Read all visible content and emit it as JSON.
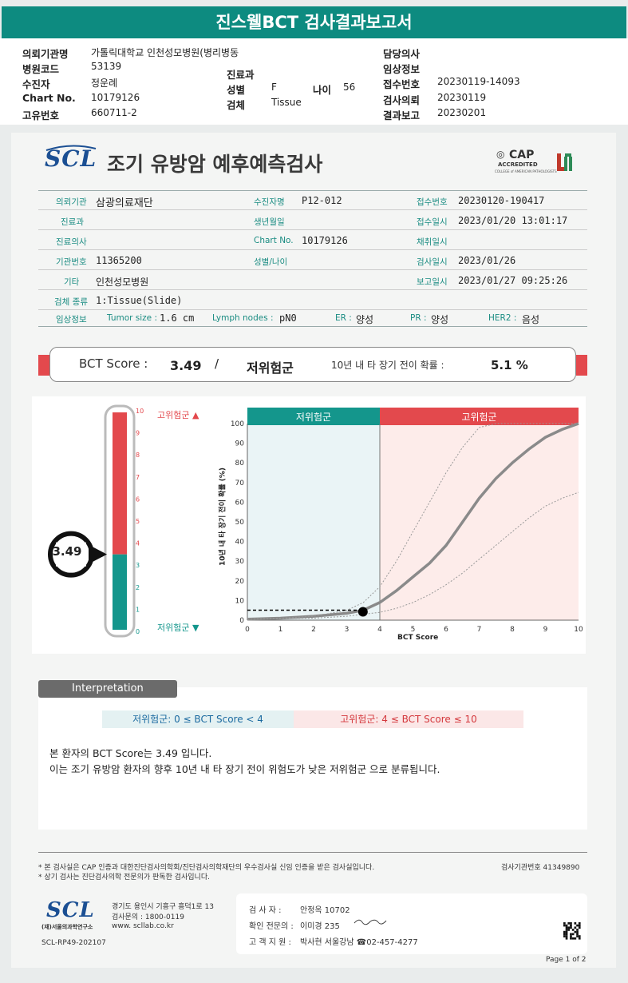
{
  "report_title": "진스웰BCT 검사결과보고서",
  "header": {
    "left": [
      {
        "label": "의뢰기관명",
        "value": "가톨릭대학교 인천성모병원(병리병동"
      },
      {
        "label": "병원코드",
        "value": "53139"
      },
      {
        "label": "수진자",
        "value": "정운례"
      },
      {
        "label": "Chart No.",
        "value": "10179126"
      },
      {
        "label": "고유번호",
        "value": "660711-2"
      }
    ],
    "mid": {
      "dept_label": "진료과",
      "sex_label": "성별",
      "sex_value": "F",
      "age_label": "나이",
      "age_value": "56",
      "specimen_label": "검체",
      "specimen_value": "Tissue"
    },
    "right": [
      {
        "label": "담당의사",
        "value": ""
      },
      {
        "label": "임상정보",
        "value": ""
      },
      {
        "label": "접수번호",
        "value": "20230119-14093"
      },
      {
        "label": "검사의뢰",
        "value": "20230119"
      },
      {
        "label": "결과보고",
        "value": "20230201"
      }
    ]
  },
  "brand": {
    "logo": "SCL",
    "title": "조기 유방암 예후예측검사",
    "cap_text": "CAP",
    "cap_sub": "ACCREDITED",
    "cap_small": "COLLEGE of AMERICAN PATHOLOGISTS"
  },
  "info": {
    "r1": {
      "l1": "의뢰기관",
      "v1": "삼광의료재단",
      "l2": "수진자명",
      "v2": "P12-012",
      "l3": "접수번호",
      "v3": "20230120-190417"
    },
    "r2": {
      "l1": "진료과",
      "v1": "",
      "l2": "생년월일",
      "v2": "",
      "l3": "접수일시",
      "v3": "2023/01/20 13:01:17"
    },
    "r3": {
      "l1": "진료의사",
      "v1": "",
      "l2": "Chart No.",
      "v2": "10179126",
      "l3": "채취일시",
      "v3": ""
    },
    "r4": {
      "l1": "기관번호",
      "v1": "11365200",
      "l2": "성별/나이",
      "v2": "",
      "l3": "검사일시",
      "v3": "2023/01/26"
    },
    "r5": {
      "l1": "기타",
      "v1": "인천성모병원",
      "l2": "",
      "v2": "",
      "l3": "보고일시",
      "v3": "2023/01/27 09:25:26"
    },
    "r6": {
      "l1": "검체 종류",
      "v1": "1:Tissue(Slide)"
    },
    "r7": {
      "l1": "임상정보",
      "tumor_label": "Tumor size :",
      "tumor_value": "1.6 cm",
      "lymph_label": "Lymph nodes :",
      "lymph_value": "pN0",
      "er_label": "ER :",
      "er_value": "양성",
      "pr_label": "PR :",
      "pr_value": "양성",
      "her2_label": "HER2 :",
      "her2_value": "음성"
    }
  },
  "score": {
    "label": "BCT Score :",
    "value": "3.49",
    "sep": "/",
    "group": "저위험군",
    "prob_label": "10년 내 타 장기 전이 확률 :",
    "prob_value": "5.1 %"
  },
  "gauge": {
    "value": 3.49,
    "value_text": "3.49",
    "ticks": [
      "0",
      "1",
      "2",
      "3",
      "4",
      "5",
      "6",
      "7",
      "8",
      "9",
      "10"
    ],
    "high_label": "고위험군 ▲",
    "low_label": "저위험군 ▼",
    "threshold": 4,
    "color_high": "#e3494d",
    "color_low": "#14968c"
  },
  "chart_data": {
    "type": "line",
    "title": "",
    "xlabel": "BCT Score",
    "ylabel": "10년 내 타 장기 전이 확률 (%)",
    "xlim": [
      0,
      10
    ],
    "ylim": [
      0,
      100
    ],
    "x_ticks": [
      "0",
      "1",
      "2",
      "3",
      "4",
      "5",
      "6",
      "7",
      "8",
      "9",
      "10"
    ],
    "y_ticks": [
      "0",
      "10",
      "20",
      "30",
      "40",
      "50",
      "60",
      "70",
      "80",
      "90",
      "100"
    ],
    "regions": [
      {
        "name": "저위험군",
        "from": 0,
        "to": 4,
        "color": "#14968c"
      },
      {
        "name": "고위험군",
        "from": 4,
        "to": 10,
        "color": "#e3494d"
      }
    ],
    "series": [
      {
        "style": "solid",
        "x": [
          0,
          1,
          2,
          3,
          3.5,
          4,
          4.5,
          5,
          5.5,
          6,
          6.5,
          7,
          7.5,
          8,
          8.5,
          9,
          9.5,
          10
        ],
        "y": [
          0.5,
          1,
          2,
          3.5,
          5.1,
          9,
          15,
          22,
          29,
          38,
          50,
          62,
          72,
          80,
          87,
          93,
          97,
          100
        ]
      },
      {
        "style": "dotted",
        "x": [
          0,
          1,
          2,
          3,
          3.5,
          4,
          4.5,
          5,
          5.5,
          6,
          6.5,
          7,
          7.5,
          8,
          8.5,
          9,
          9.5,
          10
        ],
        "y": [
          0.5,
          1,
          2,
          5,
          9,
          17,
          30,
          45,
          60,
          75,
          88,
          98,
          100,
          100,
          100,
          100,
          100,
          100
        ]
      },
      {
        "style": "dotted",
        "x": [
          0,
          1,
          2,
          3,
          3.5,
          4,
          4.5,
          5,
          5.5,
          6,
          6.5,
          7,
          7.5,
          8,
          8.5,
          9,
          9.5,
          10
        ],
        "y": [
          0.5,
          0.8,
          1,
          2,
          3,
          4,
          6,
          9,
          13,
          18,
          24,
          31,
          38,
          45,
          52,
          58,
          62,
          65
        ]
      }
    ],
    "marker": {
      "x": 3.49,
      "y": 5.1
    }
  },
  "interpretation": {
    "tab": "Interpretation",
    "low_range": "저위험군: 0 ≤ BCT Score < 4",
    "high_range": "고위험군: 4 ≤ BCT Score ≤ 10",
    "line1": "본 환자의 BCT Score는 3.49 입니다.",
    "line2": "이는 조기 유방암 환자의 향후 10년 내 타 장기 전이 위험도가 낮은 저위험군 으로 분류됩니다."
  },
  "footer": {
    "note1": "* 본 검사실은 CAP 인증과 대한진단검사의학회/진단검사의학재단의 우수검사실 신임 인증을 받은 검사실입니다.",
    "note2": "* 상기 검사는 진단검사의학 전문의가 판독한 검사입니다.",
    "lab_no": "검사기관번호 41349890",
    "org": "(재)서울의과학연구소",
    "addr1": "경기도 용인시 기흥구 흥덕1로 13",
    "addr2": "검사문의 : 1800-0119",
    "addr3": "www. scllab.co.kr",
    "doc_code": "SCL-RP49-202107",
    "sig1_label": "검 사 자 :",
    "sig1": "안정옥 10702",
    "sig2_label": "확인 전문의 :",
    "sig2": "이미경 235",
    "sig3_label": "고 객 지 원 :",
    "sig3": "박사현 서울강남 ☎02-457-4277",
    "page": "Page 1 of 2"
  }
}
